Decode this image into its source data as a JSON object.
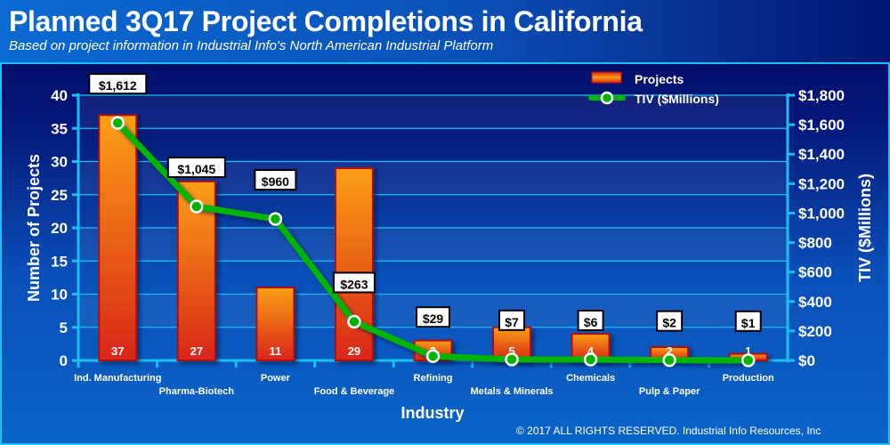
{
  "header": {
    "title": "Planned 3Q17 Project Completions in California",
    "subtitle": "Based on project information in Industrial Info's North American Industrial Platform"
  },
  "footer": {
    "copyright": "© 2017 ALL RIGHTS RESERVED. Industrial Info Resources, Inc"
  },
  "colors": {
    "bar_top": "#fb9f12",
    "bar_bottom": "#d9251a",
    "bar_border": "#b0100c",
    "line": "#00b400",
    "axis": "#19c0f5"
  },
  "chart_data": {
    "type": "bar",
    "title": "Planned 3Q17 Project Completions in California",
    "xlabel": "Industry",
    "ylabel": "Number of Projects",
    "y2label": "TIV ($Millions)",
    "categories": [
      "Ind. Manufacturing",
      "Pharma-Biotech",
      "Power",
      "Food & Beverage",
      "Refining",
      "Metals & Minerals",
      "Chemicals",
      "Pulp & Paper",
      "Production"
    ],
    "series": [
      {
        "name": "Projects",
        "type": "bar",
        "axis": "left",
        "values": [
          37,
          27,
          11,
          29,
          3,
          5,
          4,
          2,
          1
        ],
        "labels": [
          "37",
          "27",
          "11",
          "29",
          "3",
          "5",
          "4",
          "2",
          "1"
        ]
      },
      {
        "name": "TIV ($Millions)",
        "type": "line",
        "axis": "right",
        "values": [
          1612,
          1045,
          960,
          263,
          29,
          7,
          6,
          2,
          1
        ],
        "labels": [
          "$1,612",
          "$1,045",
          "$960",
          "$263",
          "$29",
          "$7",
          "$6",
          "$2",
          "$1"
        ]
      }
    ],
    "ylim": [
      0,
      40
    ],
    "yticks": [
      "0",
      "5",
      "10",
      "15",
      "20",
      "25",
      "30",
      "35",
      "40"
    ],
    "y2lim": [
      0,
      1800
    ],
    "y2ticks": [
      "$0",
      "$200",
      "$400",
      "$600",
      "$800",
      "$1,000",
      "$1,200",
      "$1,400",
      "$1,600",
      "$1,800"
    ],
    "legend": {
      "position": "top-right",
      "entries": [
        "Projects",
        "TIV ($Millions)"
      ]
    },
    "grid": true
  }
}
